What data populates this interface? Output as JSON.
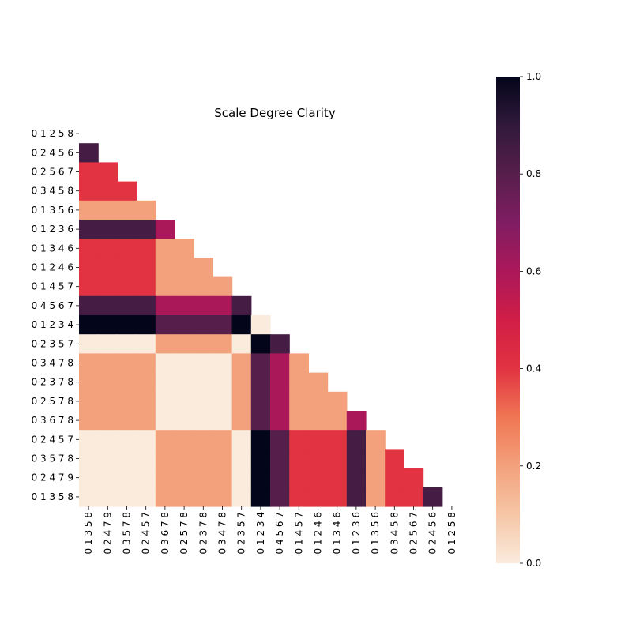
{
  "chart_data": {
    "type": "heatmap",
    "title": "Scale Degree Clarity",
    "xlabel": "",
    "ylabel": "",
    "row_labels": [
      "0 1 2 5 8",
      "0 2 4 5 6",
      "0 2 5 6 7",
      "0 3 4 5 8",
      "0 1 3 5 6",
      "0 1 2 3 6",
      "0 1 3 4 6",
      "0 1 2 4 6",
      "0 1 4 5 7",
      "0 4 5 6 7",
      "0 1 2 3 4",
      "0 2 3 5 7",
      "0 3 4 7 8",
      "0 2 3 7 8",
      "0 2 5 7 8",
      "0 3 6 7 8",
      "0 2 4 5 7",
      "0 3 5 7 8",
      "0 2 4 7 9",
      "0 1 3 5 8"
    ],
    "col_labels": [
      "0 1 3 5 8",
      "0 2 4 7 9",
      "0 3 5 7 8",
      "0 2 4 5 7",
      "0 3 6 7 8",
      "0 2 5 7 8",
      "0 2 3 7 8",
      "0 3 4 7 8",
      "0 2 3 5 7",
      "0 1 2 3 4",
      "0 4 5 6 7",
      "0 1 4 5 7",
      "0 1 2 4 6",
      "0 1 3 4 6",
      "0 1 2 3 6",
      "0 1 3 5 6",
      "0 3 4 5 8",
      "0 2 5 6 7",
      "0 2 4 5 6",
      "0 1 2 5 8"
    ],
    "mask": "upper-triangle including diagonal (cells with column index >= row index are blank)",
    "values": [
      [],
      [
        0.85
      ],
      [
        0.4,
        0.4
      ],
      [
        0.4,
        0.4,
        0.4
      ],
      [
        0.2,
        0.2,
        0.2,
        0.2
      ],
      [
        0.85,
        0.85,
        0.85,
        0.85,
        0.6
      ],
      [
        0.4,
        0.4,
        0.4,
        0.4,
        0.2,
        0.2
      ],
      [
        0.4,
        0.4,
        0.4,
        0.4,
        0.2,
        0.2,
        0.2
      ],
      [
        0.4,
        0.4,
        0.4,
        0.4,
        0.2,
        0.2,
        0.2,
        0.2
      ],
      [
        0.85,
        0.85,
        0.85,
        0.85,
        0.6,
        0.6,
        0.6,
        0.6,
        0.85
      ],
      [
        1.0,
        1.0,
        1.0,
        1.0,
        0.8,
        0.8,
        0.8,
        0.8,
        1.0,
        0.0
      ],
      [
        0.0,
        0.0,
        0.0,
        0.0,
        0.2,
        0.2,
        0.2,
        0.2,
        0.0,
        1.0,
        0.85
      ],
      [
        0.2,
        0.2,
        0.2,
        0.2,
        0.0,
        0.0,
        0.0,
        0.0,
        0.2,
        0.8,
        0.6,
        0.2
      ],
      [
        0.2,
        0.2,
        0.2,
        0.2,
        0.0,
        0.0,
        0.0,
        0.0,
        0.2,
        0.8,
        0.6,
        0.2,
        0.2
      ],
      [
        0.2,
        0.2,
        0.2,
        0.2,
        0.0,
        0.0,
        0.0,
        0.0,
        0.2,
        0.8,
        0.6,
        0.2,
        0.2,
        0.2
      ],
      [
        0.2,
        0.2,
        0.2,
        0.2,
        0.0,
        0.0,
        0.0,
        0.0,
        0.2,
        0.8,
        0.6,
        0.2,
        0.2,
        0.2,
        0.6
      ],
      [
        0.0,
        0.0,
        0.0,
        0.0,
        0.2,
        0.2,
        0.2,
        0.2,
        0.0,
        1.0,
        0.8,
        0.4,
        0.4,
        0.4,
        0.85,
        0.2
      ],
      [
        0.0,
        0.0,
        0.0,
        0.0,
        0.2,
        0.2,
        0.2,
        0.2,
        0.0,
        1.0,
        0.8,
        0.4,
        0.4,
        0.4,
        0.85,
        0.2,
        0.4
      ],
      [
        0.0,
        0.0,
        0.0,
        0.0,
        0.2,
        0.2,
        0.2,
        0.2,
        0.0,
        1.0,
        0.8,
        0.4,
        0.4,
        0.4,
        0.85,
        0.2,
        0.4,
        0.4
      ],
      [
        0.0,
        0.0,
        0.0,
        0.0,
        0.2,
        0.2,
        0.2,
        0.2,
        0.0,
        1.0,
        0.8,
        0.4,
        0.4,
        0.4,
        0.85,
        0.2,
        0.4,
        0.4,
        0.85
      ]
    ],
    "colorbar": {
      "range": [
        0.0,
        1.0
      ],
      "ticks": [
        "0.0",
        "0.2",
        "0.4",
        "0.6",
        "0.8",
        "1.0"
      ],
      "colormap": "rocket_r"
    },
    "colormap_stops": [
      {
        "v": 0.0,
        "color": "#faebdd"
      },
      {
        "v": 0.1,
        "color": "#f6c6a6"
      },
      {
        "v": 0.2,
        "color": "#f3a17c"
      },
      {
        "v": 0.3,
        "color": "#f07654"
      },
      {
        "v": 0.4,
        "color": "#e13342"
      },
      {
        "v": 0.5,
        "color": "#d01e46"
      },
      {
        "v": 0.6,
        "color": "#ab185a"
      },
      {
        "v": 0.7,
        "color": "#801d62"
      },
      {
        "v": 0.8,
        "color": "#561e4b"
      },
      {
        "v": 0.9,
        "color": "#31193c"
      },
      {
        "v": 1.0,
        "color": "#03051a"
      }
    ],
    "grid": false,
    "legend": "colorbar-right"
  }
}
